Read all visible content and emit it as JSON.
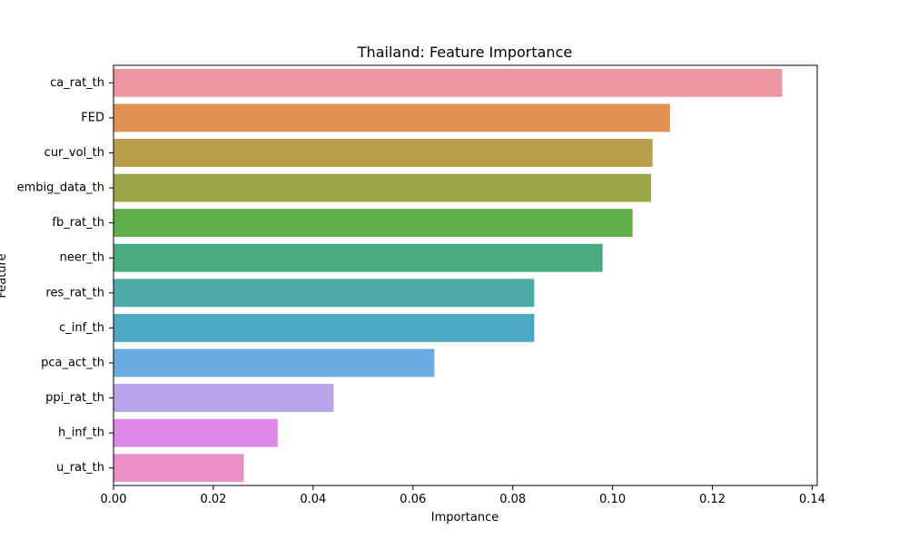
{
  "chart_data": {
    "type": "bar",
    "orientation": "horizontal",
    "title": "Thailand: Feature Importance",
    "xlabel": "Importance",
    "ylabel": "Feature",
    "xlim": [
      0,
      0.141
    ],
    "xticks": [
      0.0,
      0.02,
      0.04,
      0.06,
      0.08,
      0.1,
      0.12,
      0.14
    ],
    "xtick_labels": [
      "0.00",
      "0.02",
      "0.04",
      "0.06",
      "0.08",
      "0.10",
      "0.12",
      "0.14"
    ],
    "grid": false,
    "categories": [
      "ca_rat_th",
      "FED",
      "cur_vol_th",
      "embig_data_th",
      "fb_rat_th",
      "neer_th",
      "res_rat_th",
      "c_inf_th",
      "pca_act_th",
      "ppi_rat_th",
      "h_inf_th",
      "u_rat_th"
    ],
    "values": [
      0.134,
      0.1115,
      0.108,
      0.1077,
      0.104,
      0.098,
      0.0843,
      0.0843,
      0.0643,
      0.0441,
      0.0329,
      0.0261
    ],
    "colors": [
      "#ec96a0",
      "#e09152",
      "#bb9e49",
      "#9aa545",
      "#5fae48",
      "#4aab82",
      "#4aaba7",
      "#4aa9c0",
      "#6aacdf",
      "#b7a4ec",
      "#df8ae6",
      "#e890c7"
    ]
  }
}
